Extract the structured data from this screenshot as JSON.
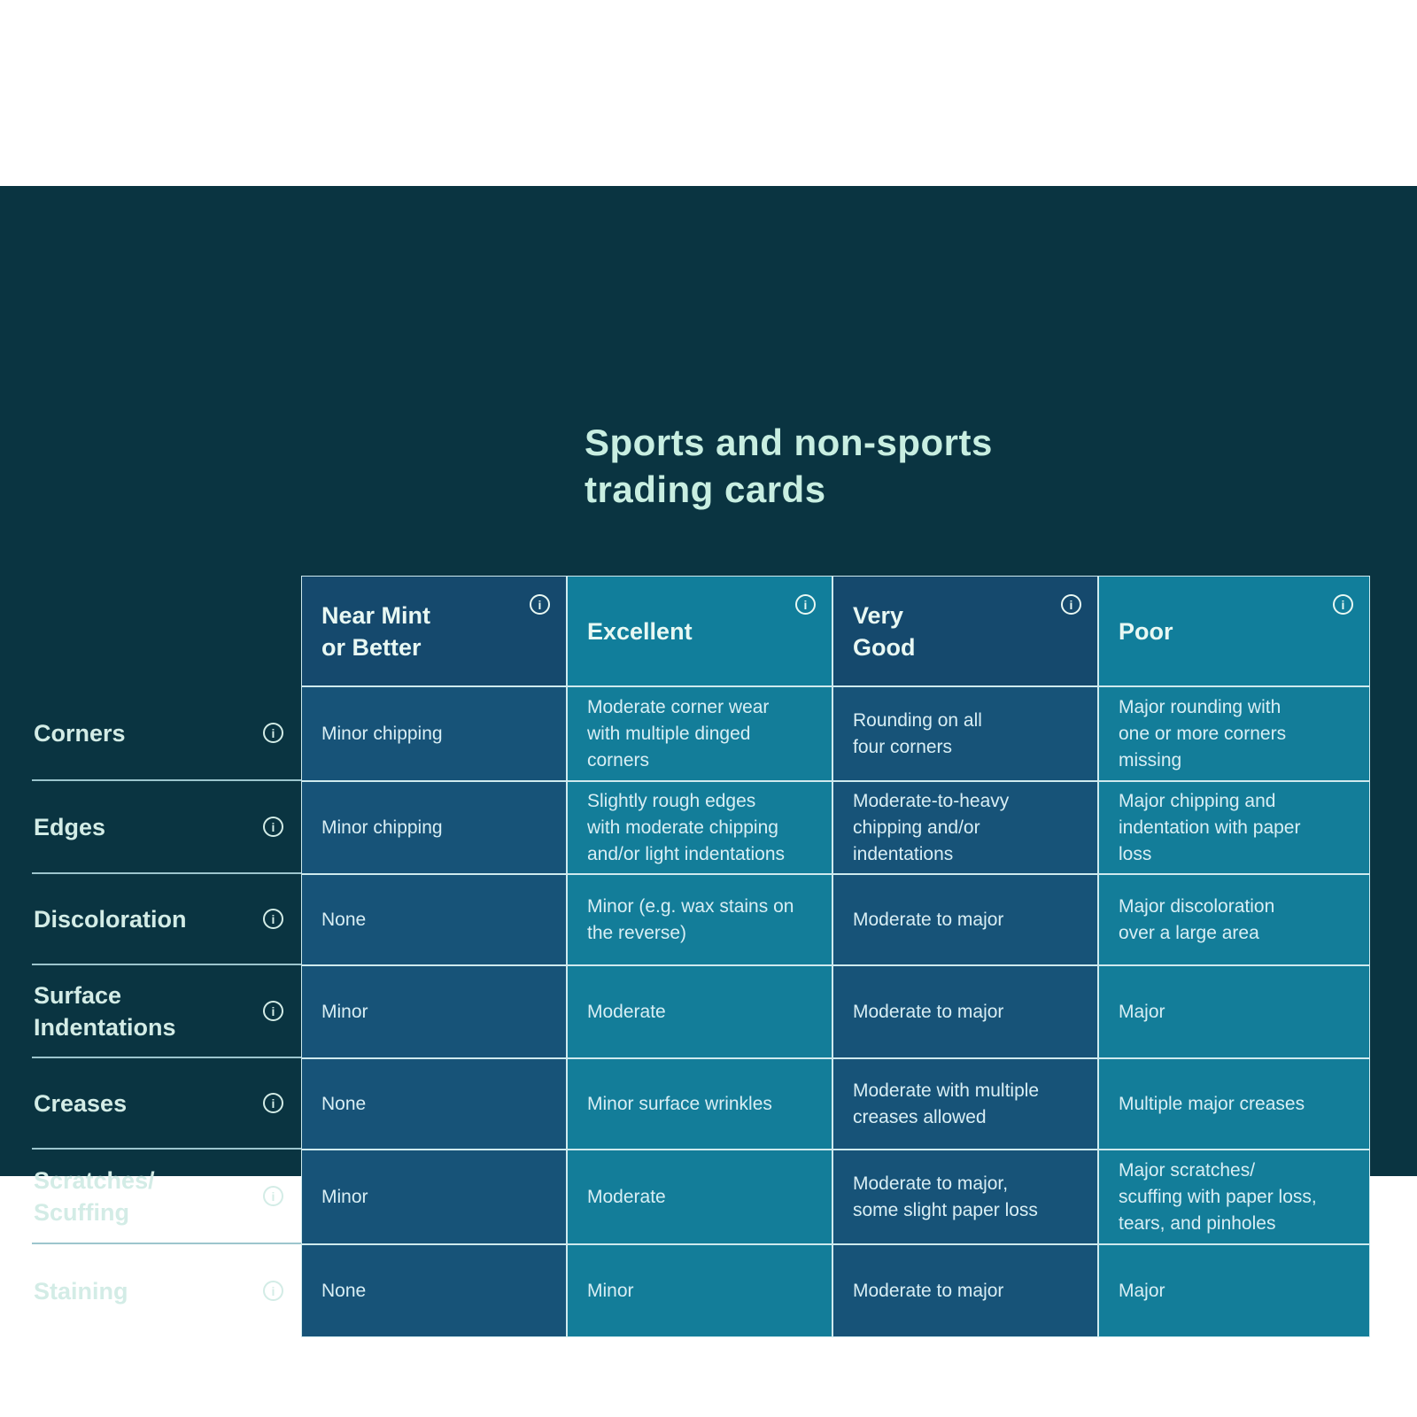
{
  "title": {
    "text": "Sports and non-sports\ntrading cards"
  },
  "icons": {
    "info": "i"
  },
  "colors": {
    "page_bg": "#ffffff",
    "panel_bg": "#0a3441",
    "dark_header_bg": "#15496d",
    "dark_cell_bg": "#175378",
    "teal_header_bg": "#117e9b",
    "teal_cell_bg": "#137d99",
    "grid_line": "#cfeaee",
    "label_line": "#9cc5cd",
    "title_text": "#c8eee1",
    "header_text": "#e8f8f3",
    "label_text": "#d3ece6",
    "cell_text": "#d8eef4"
  },
  "table": {
    "columns": [
      {
        "label": "Near Mint\nor Better",
        "tone": "dark"
      },
      {
        "label": "Excellent",
        "tone": "teal"
      },
      {
        "label": "Very\nGood",
        "tone": "dark"
      },
      {
        "label": "Poor",
        "tone": "teal"
      }
    ],
    "rows": [
      {
        "label": "Corners",
        "cells": [
          "Minor chipping",
          "Moderate corner wear\nwith multiple dinged\ncorners",
          "Rounding on all\nfour corners",
          "Major rounding with\none or more corners\nmissing"
        ]
      },
      {
        "label": "Edges",
        "cells": [
          "Minor chipping",
          "Slightly rough edges\nwith moderate chipping\nand/or light indentations",
          "Moderate-to-heavy\nchipping and/or\nindentations",
          "Major chipping and\nindentation with paper\nloss"
        ]
      },
      {
        "label": "Discoloration",
        "cells": [
          "None",
          "Minor (e.g. wax stains on\nthe reverse)",
          "Moderate to major",
          "Major discoloration\nover a large area"
        ]
      },
      {
        "label": "Surface\nIndentations",
        "cells": [
          "Minor",
          "Moderate",
          "Moderate to major",
          "Major"
        ]
      },
      {
        "label": "Creases",
        "cells": [
          "None",
          "Minor surface wrinkles",
          "Moderate with multiple\ncreases allowed",
          "Multiple major creases"
        ]
      },
      {
        "label": "Scratches/\nScuffing",
        "cells": [
          "Minor",
          "Moderate",
          "Moderate to major,\nsome slight paper loss",
          "Major scratches/\nscuffing with paper loss,\ntears, and pinholes"
        ]
      },
      {
        "label": "Staining",
        "cells": [
          "None",
          "Minor",
          "Moderate to major",
          "Major"
        ]
      }
    ]
  }
}
